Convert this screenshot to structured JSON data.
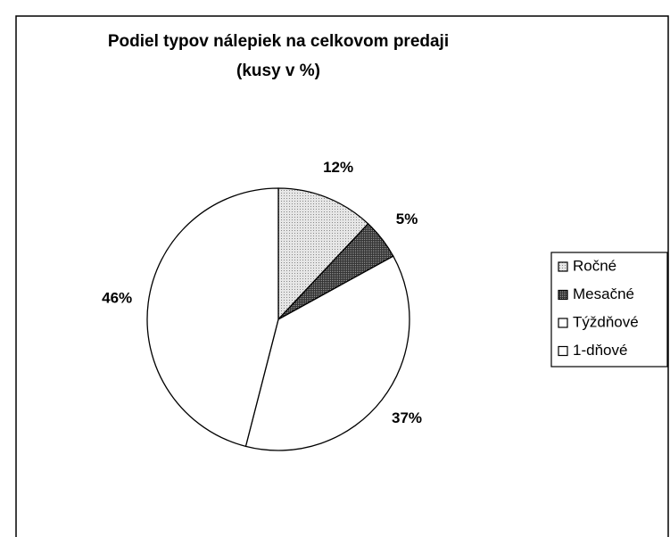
{
  "chart_data": {
    "type": "pie",
    "title": "Podiel typov nálepiek na celkovom predaji",
    "subtitle": "(kusy v %)",
    "categories": [
      "Ročné",
      "Mesačné",
      "Týždňové",
      "1-dňové"
    ],
    "values": [
      12,
      5,
      37,
      46
    ],
    "value_labels": [
      "12%",
      "5%",
      "37%",
      "46%"
    ],
    "colors": [
      "#d6d6d6",
      "#4a4a4a",
      "#ffffff",
      "#ffffff"
    ],
    "legend": "right"
  }
}
